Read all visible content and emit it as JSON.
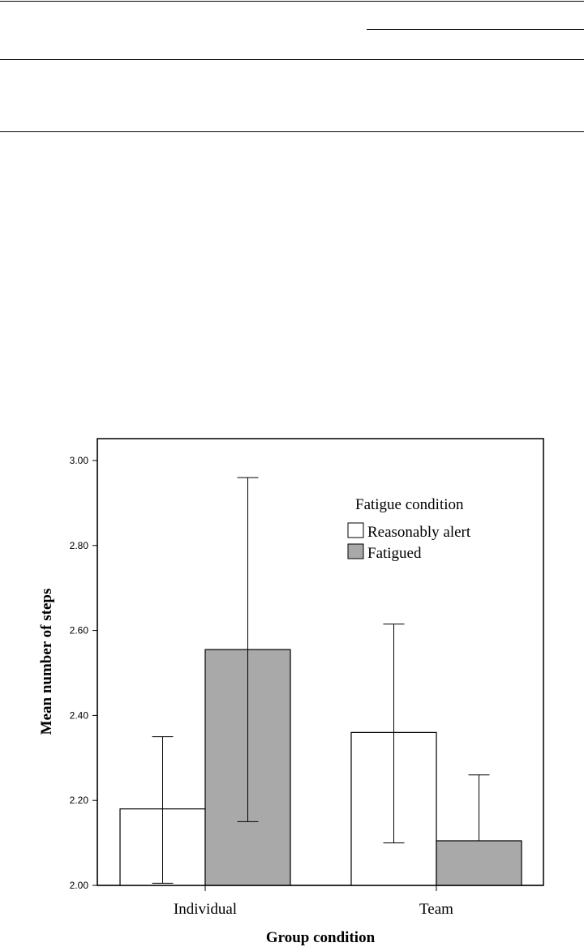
{
  "chart_data": {
    "type": "bar",
    "categories": [
      "Individual",
      "Team"
    ],
    "series": [
      {
        "name": "Reasonably alert",
        "color": "#ffffff",
        "values": [
          2.18,
          2.36
        ],
        "error_low": [
          2.005,
          2.1
        ],
        "error_high": [
          2.35,
          2.615
        ]
      },
      {
        "name": "Fatigued",
        "color": "#a9a9a9",
        "values": [
          2.555,
          2.105
        ],
        "error_low": [
          2.15,
          2.105
        ],
        "error_high": [
          2.96,
          2.26
        ]
      }
    ],
    "ylim": [
      2.0,
      3.05
    ],
    "yticks": [
      "2.00",
      "2.20",
      "2.40",
      "2.60",
      "2.80",
      "3.00"
    ],
    "xlabel": "Group condition",
    "ylabel": "Mean number of steps",
    "legend_title": "Fatigue condition",
    "legend_position": "top-right",
    "grid": false
  }
}
